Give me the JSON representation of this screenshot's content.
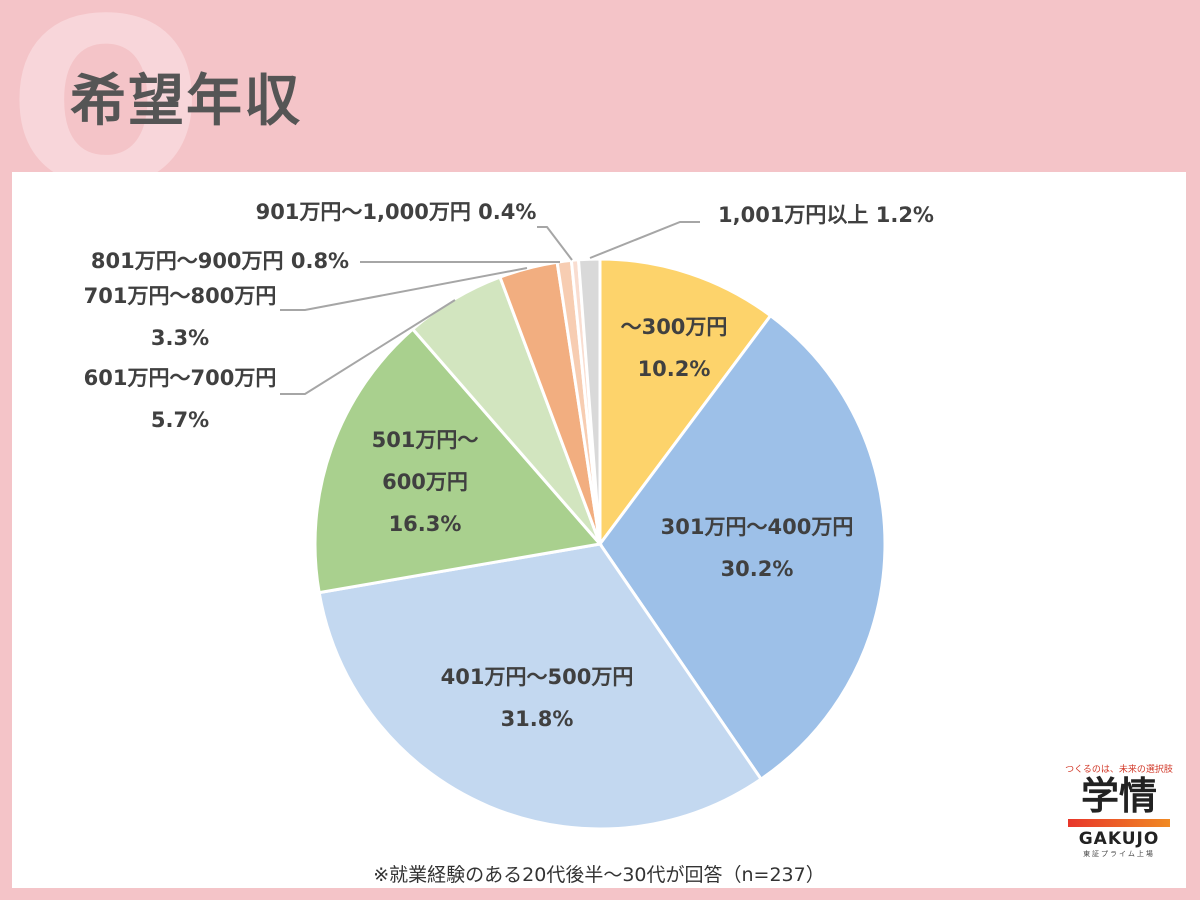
{
  "page": {
    "title": "希望年収",
    "q_mark": "Q",
    "note": "※就業経験のある20代後半～30代が回答（n=237）"
  },
  "logo": {
    "tagline": "つくるのは、未来の選択肢",
    "mark": "学情",
    "word": "GAKUJO",
    "sub": "東証プライム上場"
  },
  "chart_data": {
    "type": "pie",
    "title": "",
    "slices": [
      {
        "label": "～300万円",
        "value": 10.2,
        "display": "10.2%",
        "color": "#fdd36b",
        "label_lines": [
          "～300万円",
          "10.2%"
        ]
      },
      {
        "label": "301万円～400万円",
        "value": 30.2,
        "display": "30.2%",
        "color": "#9dc0e8",
        "label_lines": [
          "301万円～400万円",
          "30.2%"
        ]
      },
      {
        "label": "401万円～500万円",
        "value": 31.8,
        "display": "31.8%",
        "color": "#c3d8f0",
        "label_lines": [
          "401万円～500万円",
          "31.8%"
        ]
      },
      {
        "label": "501万円～600万円",
        "value": 16.3,
        "display": "16.3%",
        "color": "#a9d08e",
        "label_lines": [
          "501万円～",
          "600万円",
          "16.3%"
        ]
      },
      {
        "label": "601万円～700万円",
        "value": 5.7,
        "display": "5.7%",
        "color": "#d2e5bf",
        "label_lines": [
          "601万円～700万円",
          "5.7%"
        ]
      },
      {
        "label": "701万円～800万円",
        "value": 3.3,
        "display": "3.3%",
        "color": "#f2ae80",
        "label_lines": [
          "701万円～800万円",
          "3.3%"
        ]
      },
      {
        "label": "801万円～900万円",
        "value": 0.8,
        "display": "0.8%",
        "color": "#f7cdb2",
        "label_lines": [
          "801万円～900万円 0.8%"
        ]
      },
      {
        "label": "901万円～1,000万円",
        "value": 0.4,
        "display": "0.4%",
        "color": "#f9ddd0",
        "label_lines": [
          "901万円～1,000万円 0.4%"
        ]
      },
      {
        "label": "1,001万円以上",
        "value": 1.2,
        "display": "1.2%",
        "color": "#d9d9d9",
        "label_lines": [
          "1,001万円以上 1.2%"
        ]
      }
    ]
  }
}
